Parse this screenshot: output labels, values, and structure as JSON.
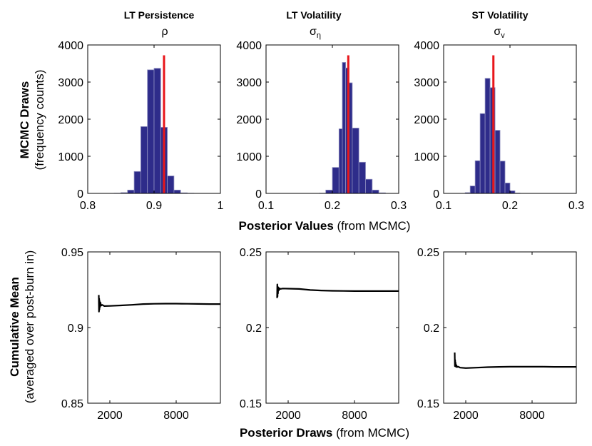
{
  "labels": {
    "top_ylabel_bold": "MCMC Draws",
    "top_ylabel_sub": "(frequency counts)",
    "top_xlabel_bold": "Posterior Values",
    "top_xlabel_rest": " (from MCMC)",
    "bottom_ylabel_bold": "Cumulative Mean",
    "bottom_ylabel_sub": "(averaged over post-burn in)",
    "bottom_xlabel_bold": "Posterior Draws",
    "bottom_xlabel_rest": " (from MCMC)"
  },
  "colors": {
    "bar_fill": "#2e2c8a",
    "bar_edge": "#8f8fc0",
    "marker": "#e8161b",
    "line": "#000000",
    "axis": "#000000"
  },
  "chart_data": [
    {
      "type": "bar",
      "panel": "hist-rho",
      "title": "LT Persistence",
      "symbol": "ρ",
      "xlim": [
        0.8,
        1.0
      ],
      "ylim": [
        0,
        4000
      ],
      "xticks": [
        0.8,
        0.9,
        1.0
      ],
      "xtick_labels": [
        "0.8",
        "0.9",
        "1"
      ],
      "yticks": [
        0,
        1000,
        2000,
        3000,
        4000
      ],
      "ytick_labels": [
        "0",
        "1000",
        "2000",
        "3000",
        "4000"
      ],
      "bin_width": 0.01,
      "bin_starts": [
        0.84,
        0.85,
        0.86,
        0.87,
        0.88,
        0.89,
        0.9,
        0.91,
        0.92,
        0.93,
        0.94,
        0.95,
        0.96,
        0.97,
        0.98
      ],
      "values": [
        5,
        20,
        90,
        590,
        1800,
        3330,
        3370,
        1780,
        470,
        90,
        15,
        5,
        2,
        1,
        0
      ],
      "marker_x": 0.915,
      "marker_top": 3720
    },
    {
      "type": "bar",
      "panel": "hist-sigma-eta",
      "title": "LT Volatility",
      "symbol": "σ",
      "symbol_sub": "η",
      "xlim": [
        0.1,
        0.3
      ],
      "ylim": [
        0,
        4000
      ],
      "xticks": [
        0.1,
        0.2,
        0.3
      ],
      "xtick_labels": [
        "0.1",
        "0.2",
        "0.3"
      ],
      "yticks": [
        0,
        1000,
        2000,
        3000,
        4000
      ],
      "ytick_labels": [
        "0",
        "1000",
        "2000",
        "3000",
        "4000"
      ],
      "bin_width": 0.01,
      "bin_starts": [
        0.18,
        0.19,
        0.2,
        0.21,
        0.215,
        0.22,
        0.225,
        0.23,
        0.24,
        0.25,
        0.26,
        0.27
      ],
      "values": [
        5,
        90,
        700,
        1740,
        3530,
        3380,
        2980,
        1760,
        840,
        380,
        90,
        15
      ],
      "bin_widths": [
        0.01,
        0.01,
        0.01,
        0.005,
        0.005,
        0.005,
        0.005,
        0.01,
        0.01,
        0.01,
        0.01,
        0.01
      ],
      "marker_x": 0.224,
      "marker_top": 3720
    },
    {
      "type": "bar",
      "panel": "hist-sigma-v",
      "title": "ST Volatility",
      "symbol": "σ",
      "symbol_sub": "v",
      "xlim": [
        0.1,
        0.3
      ],
      "ylim": [
        0,
        4000
      ],
      "xticks": [
        0.1,
        0.2,
        0.3
      ],
      "xtick_labels": [
        "0.1",
        "0.2",
        "0.3"
      ],
      "yticks": [
        0,
        1000,
        2000,
        3000,
        4000
      ],
      "ytick_labels": [
        "0",
        "1000",
        "2000",
        "3000",
        "4000"
      ],
      "bin_width": 0.0075,
      "bin_starts": [
        0.1325,
        0.14,
        0.1475,
        0.155,
        0.1625,
        0.17,
        0.1775,
        0.185,
        0.1925,
        0.2,
        0.2075
      ],
      "values": [
        20,
        200,
        880,
        2150,
        3100,
        2850,
        1700,
        870,
        280,
        70,
        10
      ],
      "marker_x": 0.175,
      "marker_top": 3720
    },
    {
      "type": "line",
      "panel": "cummean-rho",
      "xlim": [
        0,
        12000
      ],
      "ylim": [
        0.85,
        0.95
      ],
      "xticks": [
        2000,
        8000
      ],
      "xtick_labels": [
        "2000",
        "8000"
      ],
      "yticks": [
        0.85,
        0.9,
        0.95
      ],
      "ytick_labels": [
        "0.85",
        "0.9",
        "0.95"
      ],
      "x": [
        1000,
        1020,
        1040,
        1060,
        1080,
        1100,
        1150,
        1200,
        1300,
        1500,
        2000,
        3000,
        4000,
        5000,
        6000,
        7000,
        8000,
        9000,
        10000,
        11000,
        12000
      ],
      "y": [
        0.9215,
        0.9105,
        0.919,
        0.912,
        0.9175,
        0.9135,
        0.9165,
        0.9145,
        0.915,
        0.9142,
        0.9143,
        0.9146,
        0.915,
        0.9155,
        0.9157,
        0.9158,
        0.9158,
        0.9157,
        0.9156,
        0.9155,
        0.9155
      ]
    },
    {
      "type": "line",
      "panel": "cummean-sigma-eta",
      "xlim": [
        0,
        12000
      ],
      "ylim": [
        0.15,
        0.25
      ],
      "xticks": [
        2000,
        8000
      ],
      "xtick_labels": [
        "2000",
        "8000"
      ],
      "yticks": [
        0.15,
        0.2,
        0.25
      ],
      "ytick_labels": [
        "0.15",
        "0.2",
        "0.25"
      ],
      "x": [
        1000,
        1020,
        1040,
        1060,
        1080,
        1100,
        1150,
        1200,
        1300,
        1500,
        2000,
        3000,
        4000,
        5000,
        6000,
        7000,
        8000,
        9000,
        10000,
        11000,
        12000
      ],
      "y": [
        0.2195,
        0.2285,
        0.2205,
        0.227,
        0.2225,
        0.2265,
        0.2245,
        0.226,
        0.2255,
        0.2258,
        0.2257,
        0.2255,
        0.2248,
        0.2245,
        0.2243,
        0.2242,
        0.2241,
        0.2241,
        0.2241,
        0.2241,
        0.2241
      ]
    },
    {
      "type": "line",
      "panel": "cummean-sigma-v",
      "xlim": [
        0,
        12000
      ],
      "ylim": [
        0.15,
        0.25
      ],
      "xticks": [
        2000,
        8000
      ],
      "xtick_labels": [
        "2000",
        "8000"
      ],
      "yticks": [
        0.15,
        0.2,
        0.25
      ],
      "ytick_labels": [
        "0.15",
        "0.2",
        "0.25"
      ],
      "x": [
        1000,
        1020,
        1040,
        1060,
        1080,
        1100,
        1150,
        1200,
        1300,
        1500,
        2000,
        3000,
        4000,
        5000,
        6000,
        7000,
        8000,
        9000,
        10000,
        11000,
        12000
      ],
      "y": [
        0.1835,
        0.1745,
        0.1785,
        0.1745,
        0.1768,
        0.1742,
        0.1752,
        0.1738,
        0.1742,
        0.1735,
        0.1732,
        0.1735,
        0.1738,
        0.174,
        0.1741,
        0.1741,
        0.1741,
        0.1741,
        0.174,
        0.174,
        0.174
      ]
    }
  ]
}
